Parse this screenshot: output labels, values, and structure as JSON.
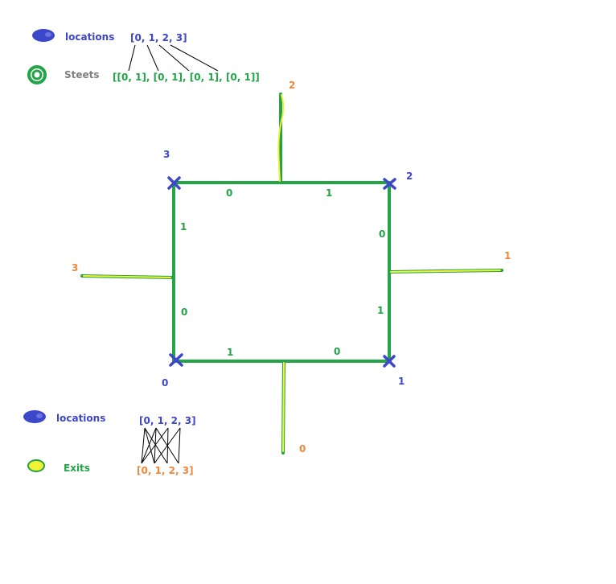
{
  "colors": {
    "street": "#22a447",
    "exit_fill": "#f2f233",
    "location": "#3d47c9",
    "exit_label": "#f0873a",
    "connector": "#000000",
    "street_legend_text": "#7f7f7f"
  },
  "legend_top": {
    "locations_label": "locations",
    "locations_list": "[0, 1, 2, 3]",
    "streets_label": "Steets",
    "streets_list": "[[0, 1], [0, 1], [0, 1], [0, 1]]"
  },
  "legend_bottom": {
    "locations_label": "locations",
    "locations_list": "[0, 1, 2, 3]",
    "exits_label": "Exits",
    "exits_list": "[0, 1, 2, 3]"
  },
  "locations": [
    {
      "id": "0"
    },
    {
      "id": "1"
    },
    {
      "id": "2"
    },
    {
      "id": "3"
    }
  ],
  "street_labels": {
    "top_left": "0",
    "top_right": "1",
    "right_top": "0",
    "right_bottom": "1",
    "bottom_right": "0",
    "bottom_left": "1",
    "left_bottom": "0",
    "left_top": "1"
  },
  "exits": [
    {
      "id": "0"
    },
    {
      "id": "1"
    },
    {
      "id": "2"
    },
    {
      "id": "3"
    }
  ]
}
